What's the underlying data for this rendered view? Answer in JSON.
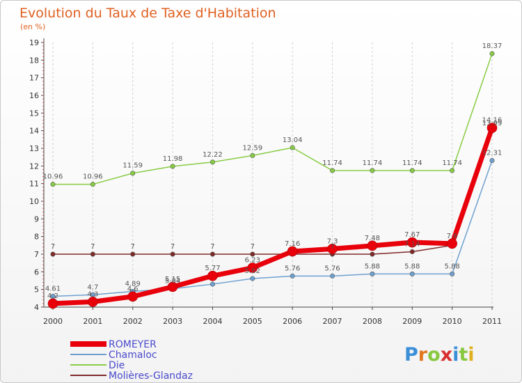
{
  "chart_data": {
    "type": "line",
    "title": "Evolution du Taux de Taxe d'Habitation",
    "subtitle": "(en %)",
    "x": [
      "2000",
      "2001",
      "2002",
      "2003",
      "2004",
      "2005",
      "2006",
      "2007",
      "2008",
      "2009",
      "2010",
      "2011"
    ],
    "yticks": [
      "4",
      "5",
      "6",
      "7",
      "8",
      "9",
      "10",
      "11",
      "12",
      "13",
      "14",
      "15",
      "16",
      "17",
      "18",
      "19"
    ],
    "ylim": [
      4,
      19
    ],
    "grid": "dashed-vertical",
    "legend_position": "bottom-left",
    "series": [
      {
        "name": "ROMEYER",
        "color": "#e8000b",
        "values": [
          4.2,
          4.3,
          4.6,
          5.15,
          5.77,
          6.23,
          7.16,
          7.3,
          7.48,
          7.67,
          7.6,
          14.16
        ],
        "labels": [
          "4.2",
          "4.3",
          "4.6",
          "5.15",
          "5.77",
          "6.23",
          "7.16",
          "7.3",
          "7.48",
          "7.67",
          "7.6",
          "14.16"
        ]
      },
      {
        "name": "Chamaloc",
        "color": "#6ea0d0",
        "values": [
          4.61,
          4.7,
          4.89,
          5.04,
          5.3,
          5.62,
          5.76,
          5.76,
          5.88,
          5.88,
          5.88,
          12.31
        ],
        "labels": [
          "4.61",
          "4.7",
          "4.89",
          "5.04",
          "",
          "5.62",
          "5.76",
          "5.76",
          "5.88",
          "5.88",
          "5.88",
          "12.31"
        ]
      },
      {
        "name": "Die",
        "color": "#88cc44",
        "values": [
          10.96,
          10.96,
          11.59,
          11.98,
          12.22,
          12.59,
          13.04,
          11.74,
          11.74,
          11.74,
          11.74,
          18.37
        ],
        "labels": [
          "10.96",
          "10.96",
          "11.59",
          "11.98",
          "12.22",
          "12.59",
          "13.04",
          "11.74",
          "11.74",
          "11.74",
          "11.74",
          "18.37"
        ]
      },
      {
        "name": "Molières-Glandaz",
        "color": "#802828",
        "values": [
          7,
          7,
          7,
          7,
          7,
          7,
          7,
          7,
          7,
          7.14,
          7.5,
          13.99
        ],
        "labels": [
          "7",
          "7",
          "7",
          "7",
          "7",
          "7",
          "",
          "7",
          "",
          "7.14",
          "",
          "13.99"
        ]
      }
    ]
  },
  "brand": {
    "letters": [
      "P",
      "r",
      "o",
      "x",
      "i",
      "t",
      "i"
    ],
    "colors": [
      "#3a8fd8",
      "#e07820",
      "#88c840",
      "#d83030",
      "#3a8fd8",
      "#88c840",
      "#e0b020"
    ]
  }
}
